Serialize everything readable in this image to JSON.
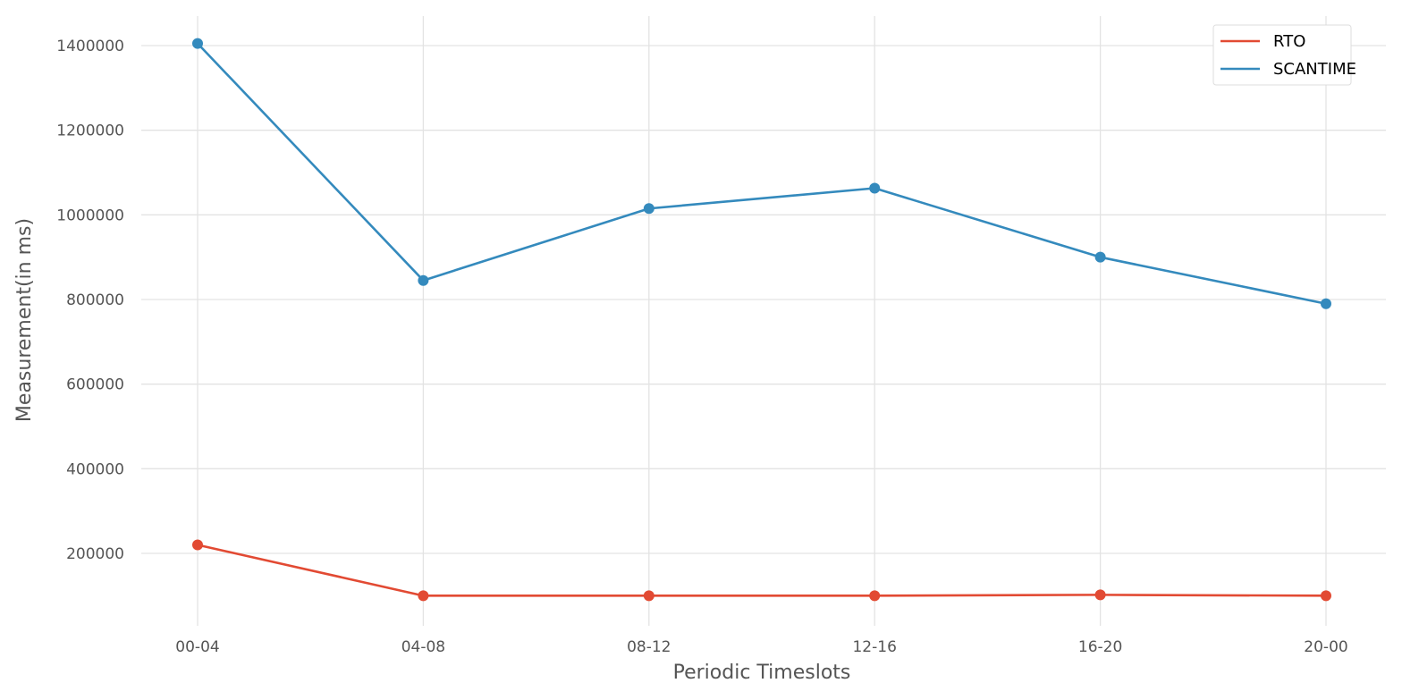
{
  "chart_data": {
    "type": "line",
    "title": "",
    "xlabel": "Periodic Timeslots",
    "ylabel": "Measurement(in ms)",
    "categories": [
      "00-04",
      "04-08",
      "08-12",
      "12-16",
      "16-20",
      "20-00"
    ],
    "yticks": [
      200000,
      400000,
      600000,
      800000,
      1000000,
      1200000,
      1400000
    ],
    "ytick_labels": [
      "200000",
      "400000",
      "600000",
      "800000",
      "1000000",
      "1200000",
      "1400000"
    ],
    "ylim": [
      30000,
      1470000
    ],
    "grid": true,
    "legend_position": "top-right",
    "series": [
      {
        "name": "RTO",
        "color": "#E24A33",
        "values": [
          220000,
          100000,
          100000,
          100000,
          102000,
          100000
        ]
      },
      {
        "name": "SCANTIME",
        "color": "#348ABD",
        "values": [
          1405000,
          845000,
          1015000,
          1063000,
          900000,
          790000
        ]
      }
    ]
  }
}
